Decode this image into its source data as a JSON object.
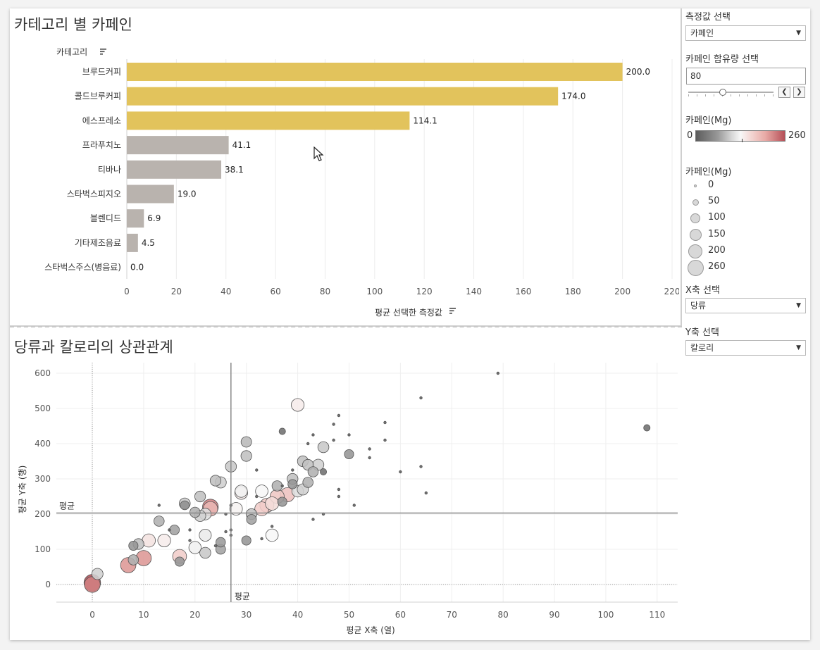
{
  "bar_panel": {
    "title": "카테고리 별 카페인",
    "category_header": "카테고리",
    "x_axis_title": "평균 선택한 측정값"
  },
  "scatter_panel": {
    "title": "당류과 칼로리의 상관관계",
    "x_axis_title": "평균 X축 (열)",
    "y_axis_title": "평균 Y축 (행)",
    "avg_label_h": "평균",
    "avg_label_v": "평균"
  },
  "sidebar": {
    "measure_label": "측정값 선택",
    "measure_value": "카페인",
    "caffeine_label": "카페인 함유량 선택",
    "caffeine_value": "80",
    "color_legend_title": "카페인(Mg)",
    "color_min": "0",
    "color_max": "260",
    "size_legend_title": "카페인(Mg)",
    "size_items": [
      "0",
      "50",
      "100",
      "150",
      "200",
      "260"
    ],
    "x_select_label": "X축 선택",
    "x_select_value": "당류",
    "y_select_label": "Y축 선택",
    "y_select_value": "칼로리"
  },
  "chart_data": [
    {
      "type": "bar",
      "orientation": "horizontal",
      "categories": [
        "브루드커피",
        "콜드브루커피",
        "에스프레소",
        "프라푸치노",
        "티바나",
        "스타벅스피지오",
        "블렌디드",
        "기타제조음료",
        "스타벅스주스(병음료)"
      ],
      "values": [
        200.0,
        174.0,
        114.1,
        41.1,
        38.1,
        19.0,
        6.9,
        4.5,
        0.0
      ],
      "value_labels": [
        "200.0",
        "174.0",
        "114.1",
        "41.1",
        "38.1",
        "19.0",
        "6.9",
        "4.5",
        "0.0"
      ],
      "highlighted": [
        true,
        true,
        true,
        false,
        false,
        false,
        false,
        false,
        false
      ],
      "colors": {
        "highlight": "#e2c35c",
        "normal": "#b9b3ae"
      },
      "xlim": [
        0,
        220
      ],
      "xticks": [
        0,
        20,
        40,
        60,
        80,
        100,
        120,
        140,
        160,
        180,
        200,
        220
      ]
    },
    {
      "type": "scatter",
      "xlim": [
        -7,
        114
      ],
      "ylim": [
        -50,
        630
      ],
      "xticks": [
        0,
        10,
        20,
        30,
        40,
        50,
        60,
        70,
        80,
        90,
        100,
        110
      ],
      "yticks": [
        0,
        100,
        200,
        300,
        400,
        500,
        600
      ],
      "x_average": 27,
      "y_average": 203,
      "points": [
        {
          "x": 0,
          "y": 5,
          "c": 260
        },
        {
          "x": 0,
          "y": 0,
          "c": 230
        },
        {
          "x": 1,
          "y": 30,
          "c": 100
        },
        {
          "x": 7,
          "y": 55,
          "c": 215
        },
        {
          "x": 8,
          "y": 110,
          "c": 60
        },
        {
          "x": 9,
          "y": 115,
          "c": 90
        },
        {
          "x": 8,
          "y": 70,
          "c": 80
        },
        {
          "x": 10,
          "y": 75,
          "c": 215
        },
        {
          "x": 11,
          "y": 125,
          "c": 150
        },
        {
          "x": 13,
          "y": 180,
          "c": 80
        },
        {
          "x": 13,
          "y": 225,
          "c": 0
        },
        {
          "x": 14,
          "y": 125,
          "c": 140
        },
        {
          "x": 15,
          "y": 155,
          "c": 0
        },
        {
          "x": 16,
          "y": 155,
          "c": 70
        },
        {
          "x": 17,
          "y": 80,
          "c": 170
        },
        {
          "x": 17,
          "y": 65,
          "c": 60
        },
        {
          "x": 18,
          "y": 230,
          "c": 95
        },
        {
          "x": 18,
          "y": 225,
          "c": 55
        },
        {
          "x": 19,
          "y": 155,
          "c": 0
        },
        {
          "x": 19,
          "y": 125,
          "c": 0
        },
        {
          "x": 20,
          "y": 105,
          "c": 125
        },
        {
          "x": 20,
          "y": 205,
          "c": 80
        },
        {
          "x": 21,
          "y": 250,
          "c": 90
        },
        {
          "x": 21,
          "y": 195,
          "c": 100
        },
        {
          "x": 22,
          "y": 200,
          "c": 110
        },
        {
          "x": 22,
          "y": 140,
          "c": 120
        },
        {
          "x": 22,
          "y": 90,
          "c": 95
        },
        {
          "x": 23,
          "y": 220,
          "c": 230
        },
        {
          "x": 23,
          "y": 215,
          "c": 190
        },
        {
          "x": 24,
          "y": 110,
          "c": 0
        },
        {
          "x": 24,
          "y": 295,
          "c": 90
        },
        {
          "x": 25,
          "y": 290,
          "c": 100
        },
        {
          "x": 25,
          "y": 120,
          "c": 65
        },
        {
          "x": 25,
          "y": 100,
          "c": 70
        },
        {
          "x": 26,
          "y": 200,
          "c": 0
        },
        {
          "x": 26,
          "y": 150,
          "c": 0
        },
        {
          "x": 27,
          "y": 335,
          "c": 95
        },
        {
          "x": 27,
          "y": 225,
          "c": 0
        },
        {
          "x": 27,
          "y": 155,
          "c": 0
        },
        {
          "x": 27,
          "y": 140,
          "c": 0
        },
        {
          "x": 28,
          "y": 215,
          "c": 135
        },
        {
          "x": 29,
          "y": 265,
          "c": 125
        },
        {
          "x": 29,
          "y": 260,
          "c": 140
        },
        {
          "x": 30,
          "y": 405,
          "c": 85
        },
        {
          "x": 30,
          "y": 365,
          "c": 90
        },
        {
          "x": 30,
          "y": 125,
          "c": 60
        },
        {
          "x": 31,
          "y": 200,
          "c": 90
        },
        {
          "x": 31,
          "y": 185,
          "c": 70
        },
        {
          "x": 32,
          "y": 325,
          "c": 0
        },
        {
          "x": 32,
          "y": 250,
          "c": 0
        },
        {
          "x": 33,
          "y": 265,
          "c": 130
        },
        {
          "x": 33,
          "y": 215,
          "c": 170
        },
        {
          "x": 33,
          "y": 130,
          "c": 0
        },
        {
          "x": 34,
          "y": 225,
          "c": 175
        },
        {
          "x": 35,
          "y": 140,
          "c": 130
        },
        {
          "x": 35,
          "y": 230,
          "c": 155
        },
        {
          "x": 35,
          "y": 165,
          "c": 0
        },
        {
          "x": 36,
          "y": 280,
          "c": 80
        },
        {
          "x": 36,
          "y": 250,
          "c": 175
        },
        {
          "x": 37,
          "y": 435,
          "c": 20
        },
        {
          "x": 37,
          "y": 235,
          "c": 60
        },
        {
          "x": 37,
          "y": 280,
          "c": 0
        },
        {
          "x": 38,
          "y": 255,
          "c": 180
        },
        {
          "x": 39,
          "y": 300,
          "c": 90
        },
        {
          "x": 39,
          "y": 285,
          "c": 60
        },
        {
          "x": 39,
          "y": 325,
          "c": 0
        },
        {
          "x": 40,
          "y": 510,
          "c": 140
        },
        {
          "x": 40,
          "y": 265,
          "c": 110
        },
        {
          "x": 41,
          "y": 350,
          "c": 90
        },
        {
          "x": 41,
          "y": 270,
          "c": 100
        },
        {
          "x": 42,
          "y": 340,
          "c": 90
        },
        {
          "x": 42,
          "y": 290,
          "c": 80
        },
        {
          "x": 42,
          "y": 400,
          "c": 0
        },
        {
          "x": 43,
          "y": 320,
          "c": 80
        },
        {
          "x": 43,
          "y": 185,
          "c": 0
        },
        {
          "x": 43,
          "y": 425,
          "c": 0
        },
        {
          "x": 44,
          "y": 340,
          "c": 100
        },
        {
          "x": 45,
          "y": 390,
          "c": 95
        },
        {
          "x": 45,
          "y": 320,
          "c": 20
        },
        {
          "x": 45,
          "y": 200,
          "c": 0
        },
        {
          "x": 47,
          "y": 455,
          "c": 0
        },
        {
          "x": 47,
          "y": 410,
          "c": 0
        },
        {
          "x": 48,
          "y": 480,
          "c": 0
        },
        {
          "x": 48,
          "y": 270,
          "c": 0
        },
        {
          "x": 48,
          "y": 250,
          "c": 0
        },
        {
          "x": 50,
          "y": 370,
          "c": 60
        },
        {
          "x": 50,
          "y": 425,
          "c": 0
        },
        {
          "x": 51,
          "y": 225,
          "c": 0
        },
        {
          "x": 54,
          "y": 385,
          "c": 0
        },
        {
          "x": 54,
          "y": 360,
          "c": 0
        },
        {
          "x": 57,
          "y": 460,
          "c": 0
        },
        {
          "x": 57,
          "y": 410,
          "c": 0
        },
        {
          "x": 60,
          "y": 320,
          "c": 0
        },
        {
          "x": 64,
          "y": 530,
          "c": 0
        },
        {
          "x": 64,
          "y": 335,
          "c": 0
        },
        {
          "x": 65,
          "y": 260,
          "c": 0
        },
        {
          "x": 79,
          "y": 600,
          "c": 0
        },
        {
          "x": 108,
          "y": 445,
          "c": 20
        }
      ]
    }
  ]
}
